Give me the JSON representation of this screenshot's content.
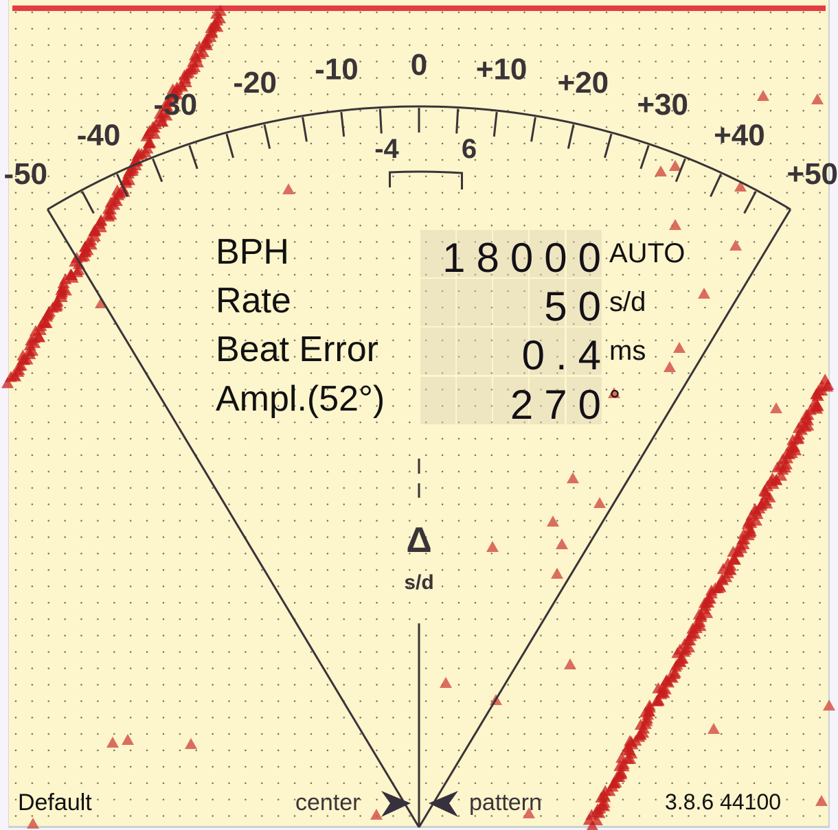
{
  "scale": {
    "major_labels": [
      "-50",
      "-40",
      "-30",
      "-20",
      "-10",
      "0",
      "+10",
      "+20",
      "+30",
      "+40",
      "+50"
    ],
    "beat_error_labels": [
      "-4",
      "6"
    ],
    "delta_symbol": "Δ",
    "delta_unit": "s/d"
  },
  "readout": {
    "rows": [
      {
        "label": "BPH",
        "value": "18000",
        "unit": "AUTO"
      },
      {
        "label": "Rate",
        "value": "50",
        "unit": "s/d"
      },
      {
        "label": "Beat Error",
        "value": "0.4",
        "unit": "ms"
      },
      {
        "label": "Ampl.(52°)",
        "value": "270",
        "unit": "°"
      }
    ]
  },
  "footer": {
    "profile": "Default",
    "center_label": "center",
    "pattern_label": "pattern",
    "version": "3.8.6 44100"
  },
  "colors": {
    "background": "#fdf5cc",
    "status_bar": "#e53b45",
    "trace": "#c81e1e",
    "ink": "#3a3438"
  }
}
